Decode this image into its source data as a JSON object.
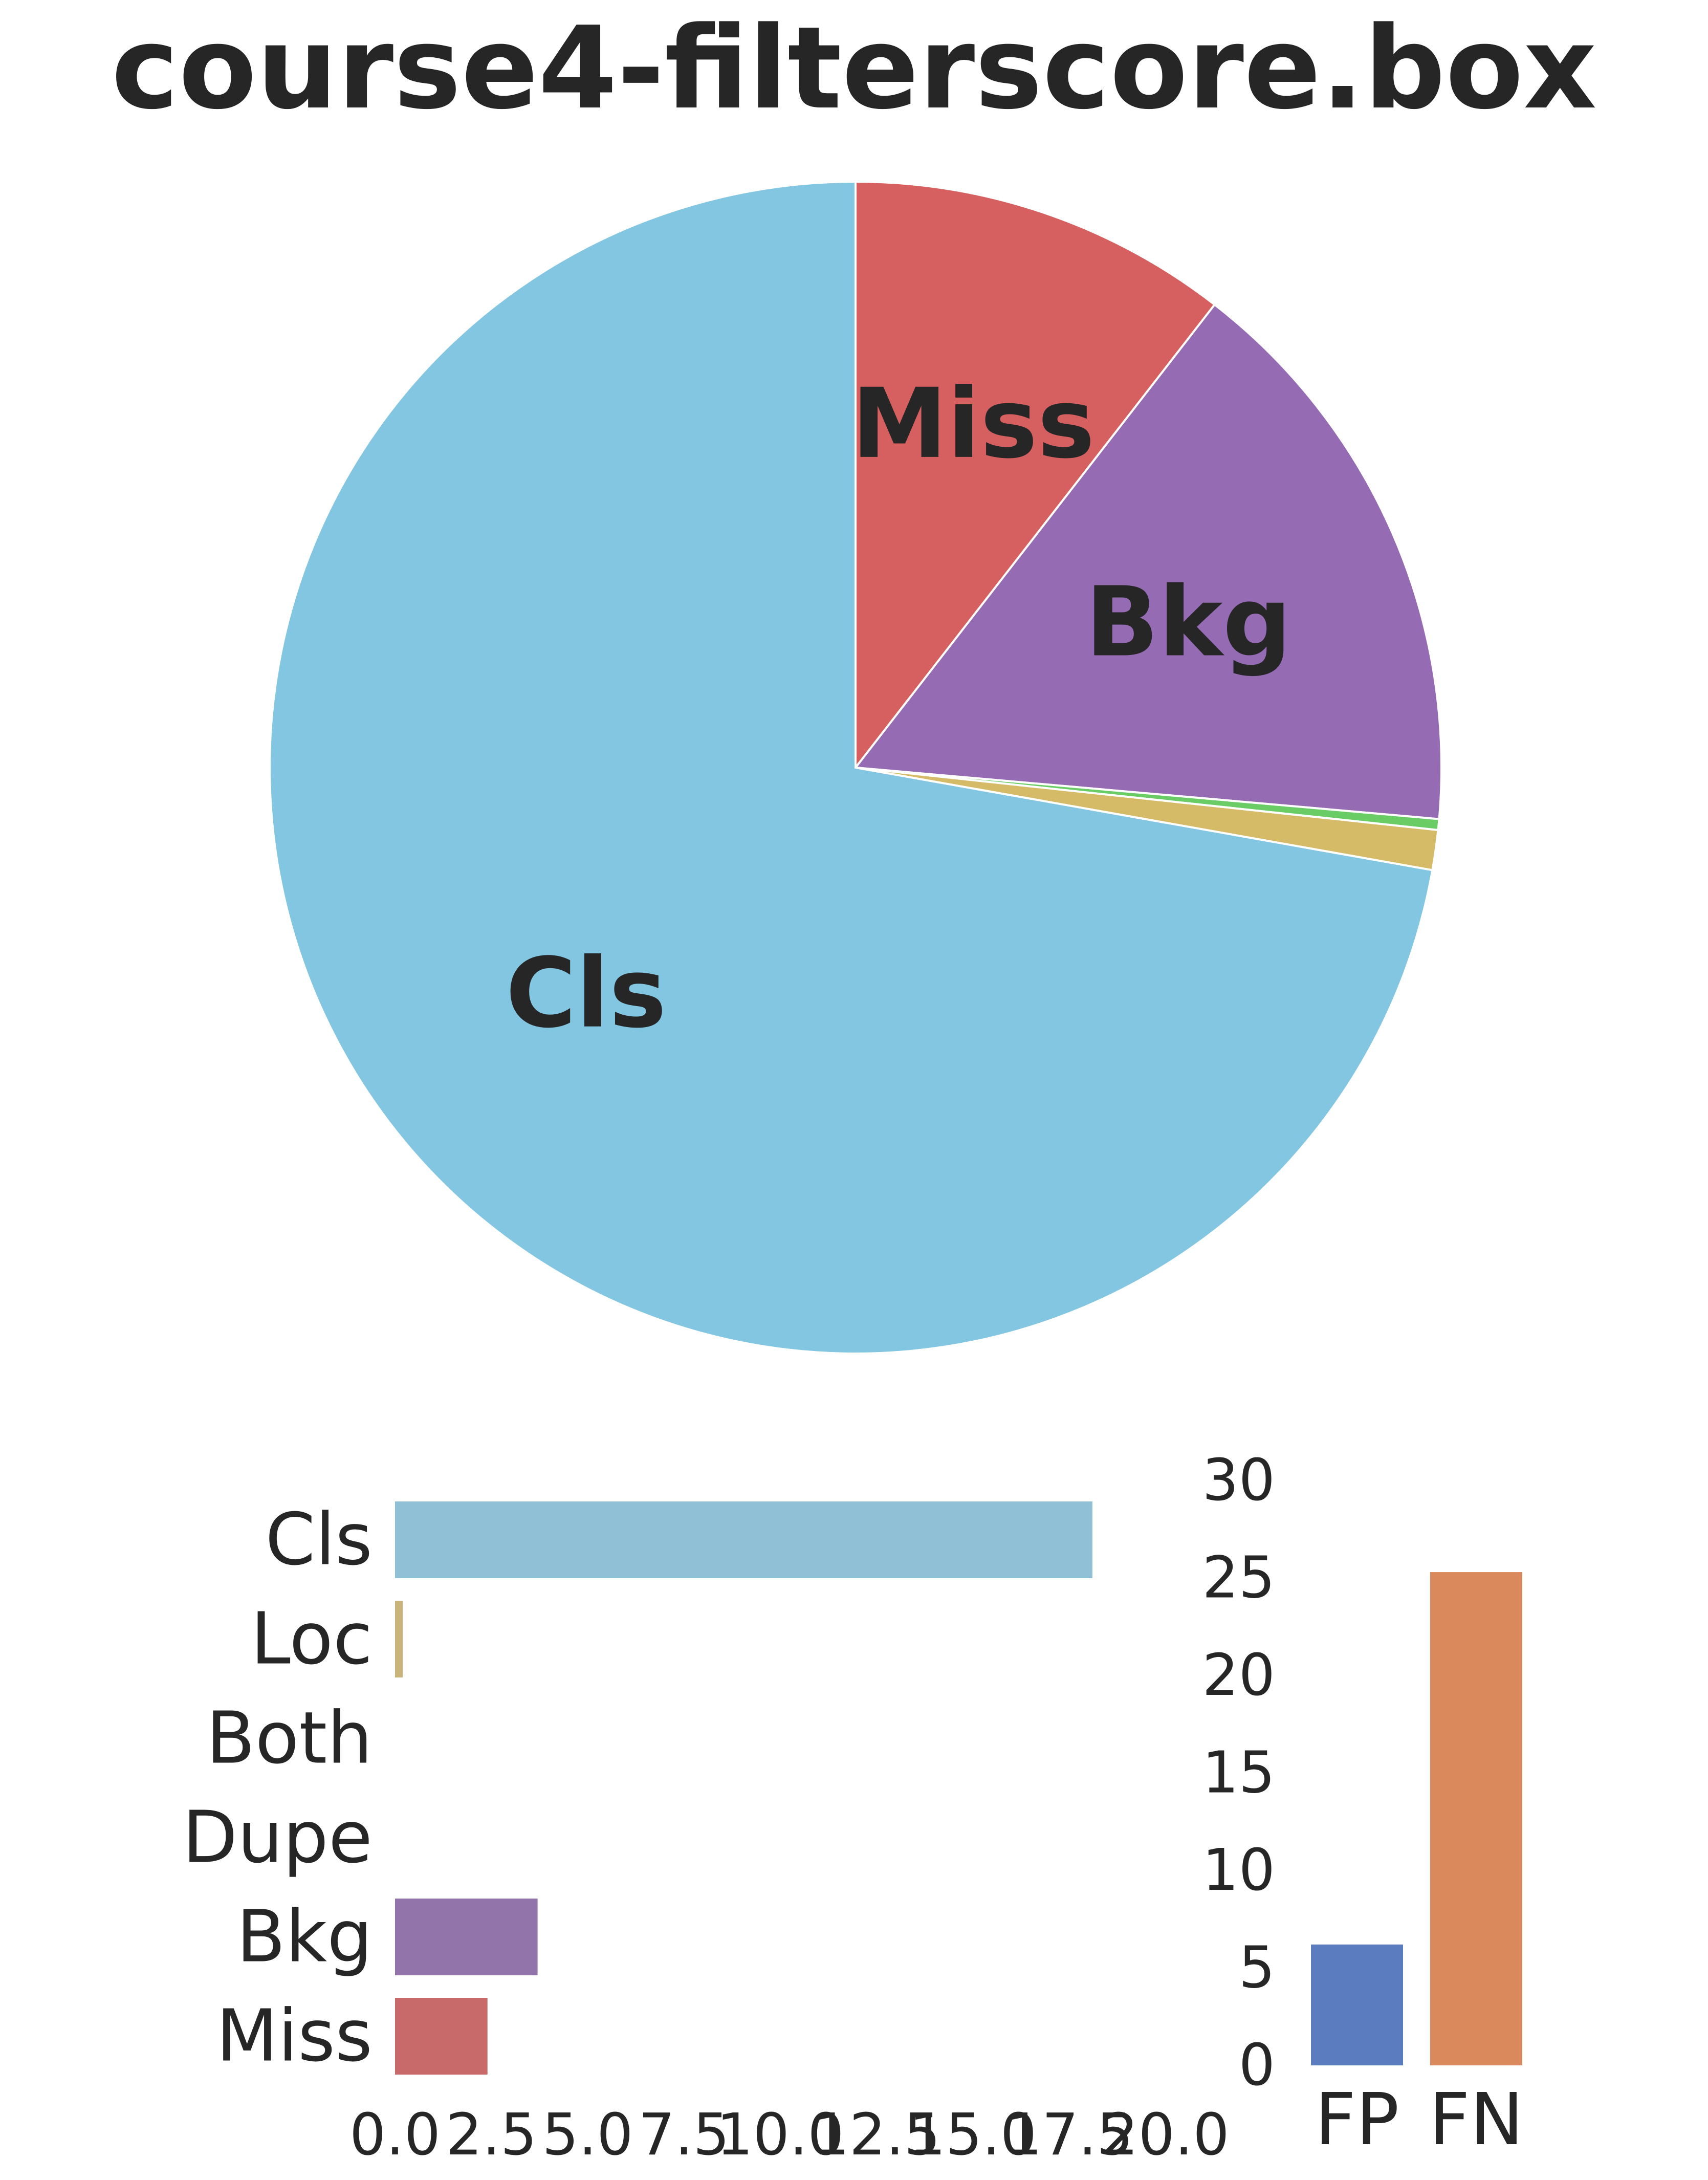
{
  "chart_data": [
    {
      "type": "pie",
      "title": "course4-filterscore.box",
      "slices": [
        {
          "name": "Miss",
          "value": 10.5,
          "color": "#d65f5f",
          "label": "Miss"
        },
        {
          "name": "Bkg",
          "value": 15.9,
          "color": "#956cb4",
          "label": "Bkg"
        },
        {
          "name": "Dupe",
          "value": 0.0,
          "color": "#8c613c",
          "label": ""
        },
        {
          "name": "Both",
          "value": 0.3,
          "color": "#6acc64",
          "label": ""
        },
        {
          "name": "Loc",
          "value": 1.1,
          "color": "#d5bb67",
          "label": ""
        },
        {
          "name": "Cls",
          "value": 72.2,
          "color": "#82c6e2",
          "label": "Cls"
        }
      ]
    },
    {
      "type": "bar",
      "orientation": "horizontal",
      "categories": [
        "Cls",
        "Loc",
        "Both",
        "Dupe",
        "Bkg",
        "Miss"
      ],
      "values": [
        18.1,
        0.2,
        0.0,
        0.0,
        3.7,
        2.4
      ],
      "colors": [
        "#8fc0d6",
        "#c9b47a",
        "#76b96f",
        "#a07a5a",
        "#9274ab",
        "#c86a6a"
      ],
      "xticks": [
        "0.0",
        "2.5",
        "5.0",
        "7.5",
        "10.0",
        "12.5",
        "15.0",
        "17.5",
        "20.0"
      ],
      "xlim": [
        0,
        20
      ],
      "grid": false
    },
    {
      "type": "bar",
      "orientation": "vertical",
      "categories": [
        "FP",
        "FN"
      ],
      "values": [
        6.2,
        25.3
      ],
      "colors": [
        "#5b7dbf",
        "#d9895b"
      ],
      "yticks": [
        "0",
        "5",
        "10",
        "15",
        "20",
        "25",
        "30"
      ],
      "ylim": [
        0,
        30
      ],
      "grid": false
    }
  ]
}
